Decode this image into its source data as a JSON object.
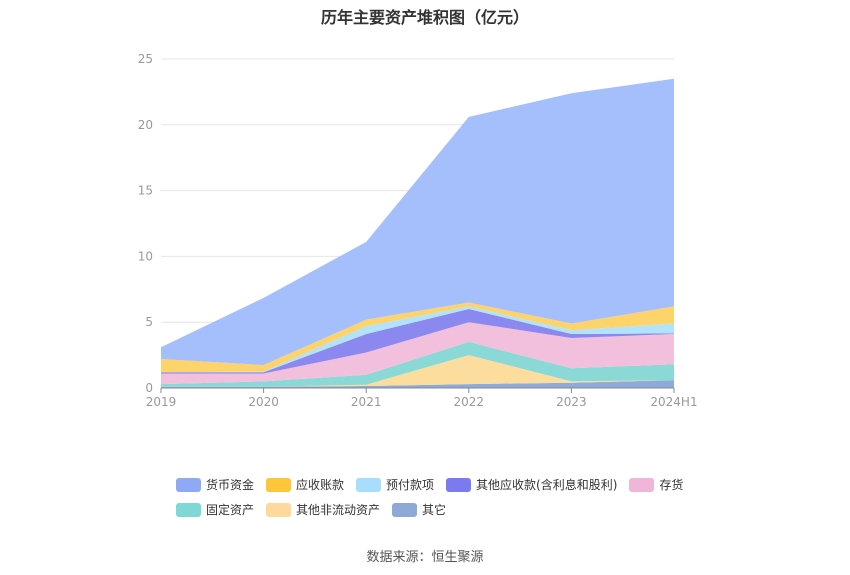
{
  "chart_data": {
    "type": "area",
    "stacked": true,
    "title": "历年主要资产堆积图（亿元）",
    "categories": [
      "2019",
      "2020",
      "2021",
      "2022",
      "2023",
      "2024H1"
    ],
    "ylim": [
      0,
      25
    ],
    "yticks": [
      0,
      5,
      10,
      15,
      20,
      25
    ],
    "grid": true,
    "legend_position": "bottom",
    "series": [
      {
        "name": "其它",
        "color": "#8eaadb",
        "values": [
          0.1,
          0.1,
          0.15,
          0.3,
          0.4,
          0.6
        ]
      },
      {
        "name": "其他非流动资产",
        "color": "#fddd9e",
        "values": [
          0.0,
          0.0,
          0.1,
          2.2,
          0.1,
          0.0
        ]
      },
      {
        "name": "固定资产",
        "color": "#8ad9d7",
        "values": [
          0.2,
          0.4,
          0.75,
          1.0,
          1.0,
          1.2
        ]
      },
      {
        "name": "存货",
        "color": "#f2bfdc",
        "values": [
          0.8,
          0.6,
          1.7,
          1.5,
          2.3,
          2.3
        ]
      },
      {
        "name": "其他应收款(含利息和股利)",
        "color": "#8b88f0",
        "values": [
          0.1,
          0.1,
          1.4,
          1.0,
          0.3,
          0.05
        ]
      },
      {
        "name": "预付款项",
        "color": "#b3e2fb",
        "values": [
          0.0,
          0.05,
          0.6,
          0.2,
          0.3,
          0.75
        ]
      },
      {
        "name": "应收账款",
        "color": "#fdd36b",
        "values": [
          1.0,
          0.5,
          0.5,
          0.3,
          0.5,
          1.3
        ]
      },
      {
        "name": "货币资金",
        "color": "#a5bffd",
        "values": [
          0.9,
          5.1,
          5.9,
          14.1,
          17.5,
          17.3
        ]
      }
    ]
  },
  "legend": [
    [
      {
        "label": "货币资金",
        "color": "#8fa9f5"
      },
      {
        "label": "应收账款",
        "color": "#fdc63b"
      },
      {
        "label": "预付款项",
        "color": "#a8ddfb"
      },
      {
        "label": "其他应收款(含利息和股利)",
        "color": "#7b7aee"
      },
      {
        "label": "存货",
        "color": "#f0b6da"
      }
    ],
    [
      {
        "label": "固定资产",
        "color": "#80d8d4"
      },
      {
        "label": "其他非流动资产",
        "color": "#fdda9c"
      },
      {
        "label": "其它",
        "color": "#8ea9d8"
      }
    ]
  ],
  "source": "数据来源：恒生聚源"
}
